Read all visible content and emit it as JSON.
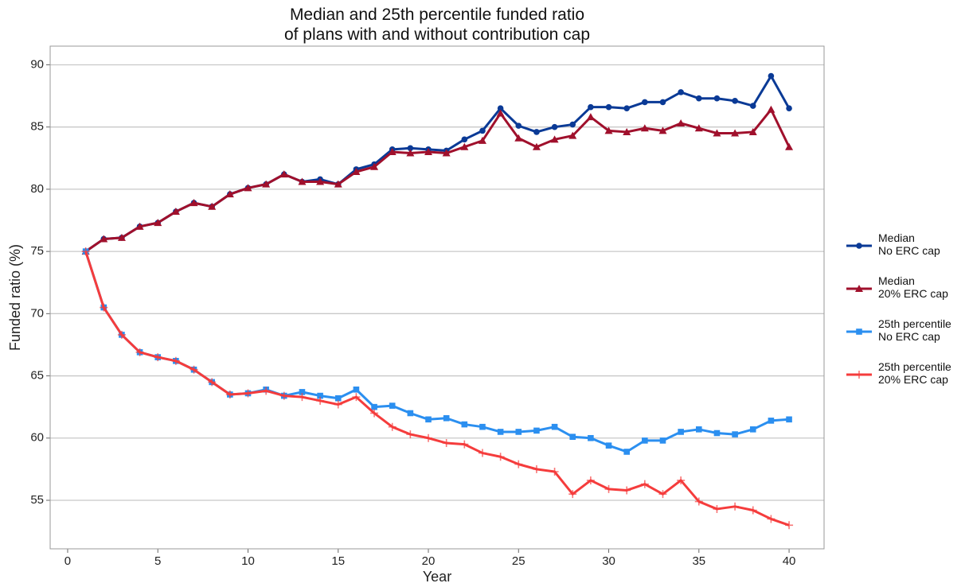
{
  "chart_data": {
    "type": "line",
    "title": "Median and 25th percentile funded ratio\nof plans with and without contribution cap",
    "x_label": "Year",
    "y_label": "Funded ratio (%)",
    "x": [
      1,
      2,
      3,
      4,
      5,
      6,
      7,
      8,
      9,
      10,
      11,
      12,
      13,
      14,
      15,
      16,
      17,
      18,
      19,
      20,
      21,
      22,
      23,
      24,
      25,
      26,
      27,
      28,
      29,
      30,
      31,
      32,
      33,
      34,
      35,
      36,
      37,
      38,
      39,
      40
    ],
    "xlim": [
      -0.97,
      41.94
    ],
    "xticks": [
      0,
      5,
      10,
      15,
      20,
      25,
      30,
      35,
      40
    ],
    "ylim": [
      51.1,
      91.5
    ],
    "yticks": [
      55,
      60,
      65,
      70,
      75,
      80,
      85,
      90
    ],
    "grid": true,
    "legend": "right",
    "series": [
      {
        "name": "Median\nNo ERC cap",
        "color": "#0a3a96",
        "marker": "circle",
        "values": [
          75,
          76,
          76.1,
          77,
          77.3,
          78.2,
          78.9,
          78.6,
          79.6,
          80.1,
          80.4,
          81.2,
          80.6,
          80.8,
          80.4,
          81.6,
          82,
          83.2,
          83.3,
          83.2,
          83.1,
          84,
          84.7,
          86.5,
          85.1,
          84.6,
          85,
          85.2,
          86.6,
          86.6,
          86.5,
          87,
          87,
          87.8,
          87.3,
          87.3,
          87.1,
          86.7,
          89.1,
          86.5
        ]
      },
      {
        "name": "Median\n20% ERC cap",
        "color": "#a0102c",
        "marker": "triangle",
        "values": [
          75,
          76,
          76.1,
          77,
          77.3,
          78.2,
          78.9,
          78.6,
          79.6,
          80.1,
          80.4,
          81.2,
          80.6,
          80.6,
          80.4,
          81.4,
          81.8,
          83,
          82.9,
          83,
          82.9,
          83.4,
          83.9,
          86.1,
          84.1,
          83.4,
          84,
          84.3,
          85.8,
          84.7,
          84.6,
          84.9,
          84.7,
          85.3,
          84.9,
          84.5,
          84.5,
          84.6,
          86.4,
          83.4
        ]
      },
      {
        "name": "25th percentile\nNo ERC cap",
        "color": "#2b8ff0",
        "marker": "square",
        "values": [
          75,
          70.5,
          68.3,
          66.9,
          66.5,
          66.2,
          65.5,
          64.5,
          63.5,
          63.6,
          63.9,
          63.4,
          63.7,
          63.4,
          63.2,
          63.9,
          62.5,
          62.6,
          62,
          61.5,
          61.6,
          61.1,
          60.9,
          60.5,
          60.5,
          60.6,
          60.9,
          60.1,
          60,
          59.4,
          58.9,
          59.8,
          59.8,
          60.5,
          60.7,
          60.4,
          60.3,
          60.7,
          61.4,
          61.5
        ]
      },
      {
        "name": "25th percentile\n20% ERC cap",
        "color": "#f53c3c",
        "marker": "plus",
        "values": [
          75,
          70.5,
          68.3,
          66.9,
          66.5,
          66.2,
          65.5,
          64.5,
          63.5,
          63.6,
          63.8,
          63.4,
          63.3,
          63,
          62.7,
          63.3,
          62,
          60.9,
          60.3,
          60,
          59.6,
          59.5,
          58.8,
          58.5,
          57.9,
          57.5,
          57.3,
          55.5,
          56.6,
          55.9,
          55.8,
          56.3,
          55.5,
          56.6,
          54.9,
          54.3,
          54.5,
          54.2,
          53.5,
          53
        ]
      }
    ]
  }
}
